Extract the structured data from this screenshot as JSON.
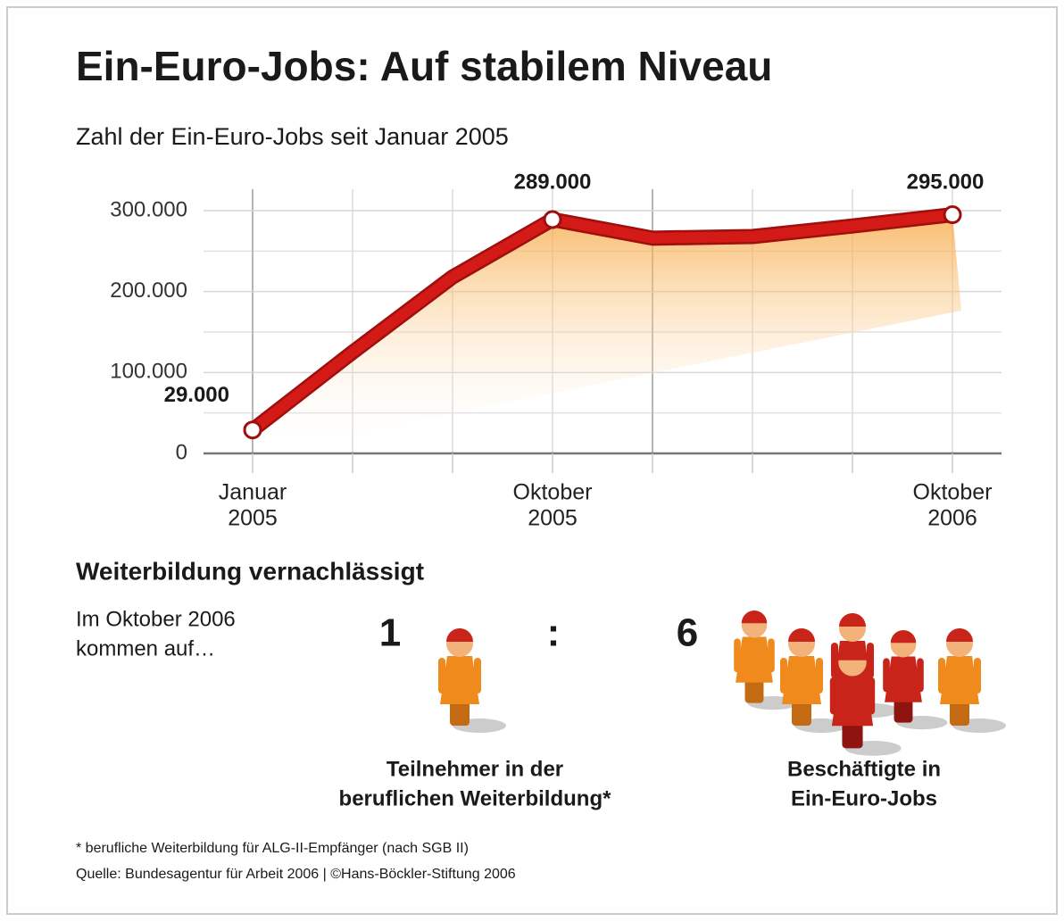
{
  "chart_data": {
    "type": "line",
    "title": "Ein-Euro-Jobs: Auf stabilem Niveau",
    "subtitle": "Zahl der Ein-Euro-Jobs seit Januar 2005",
    "categories": [
      [
        "Januar",
        "2005"
      ],
      null,
      null,
      [
        "Oktober",
        "2005"
      ],
      null,
      null,
      null,
      [
        "Oktober",
        "2006"
      ]
    ],
    "series": [
      {
        "color": "#d41a17",
        "values": [
          29000,
          125000,
          218000,
          289000,
          266000,
          268000,
          281000,
          295000
        ],
        "value_labels": [
          "29.000",
          null,
          null,
          "289.000",
          null,
          null,
          null,
          "295.000"
        ]
      }
    ],
    "ylim": [
      0,
      300000
    ],
    "yticks": [
      0,
      {
        "value": 100000,
        "label": "100.000"
      },
      {
        "value": 200000,
        "label": "200.000"
      },
      {
        "value": 300000,
        "label": "300.000"
      }
    ],
    "minor_yticks": [
      50000,
      150000,
      250000
    ],
    "grid": true
  },
  "infobox": {
    "heading": "Weiterbildung vernachlässigt",
    "intro": [
      "Im Oktober 2006",
      "kommen auf…"
    ],
    "ratio": {
      "left": 1,
      "separator": ":",
      "right": 6
    },
    "left_caption": [
      "Teilnehmer in der",
      "beruflichen Weiterbildung*"
    ],
    "right_caption": [
      "Beschäftigte in",
      "Ein-Euro-Jobs"
    ]
  },
  "footnote": "* berufliche Weiterbildung für ALG-II-Empfänger (nach SGB II)",
  "source": "Quelle: Bundesagentur für Arbeit 2006 | ©Hans-Böckler-Stiftung 2006"
}
